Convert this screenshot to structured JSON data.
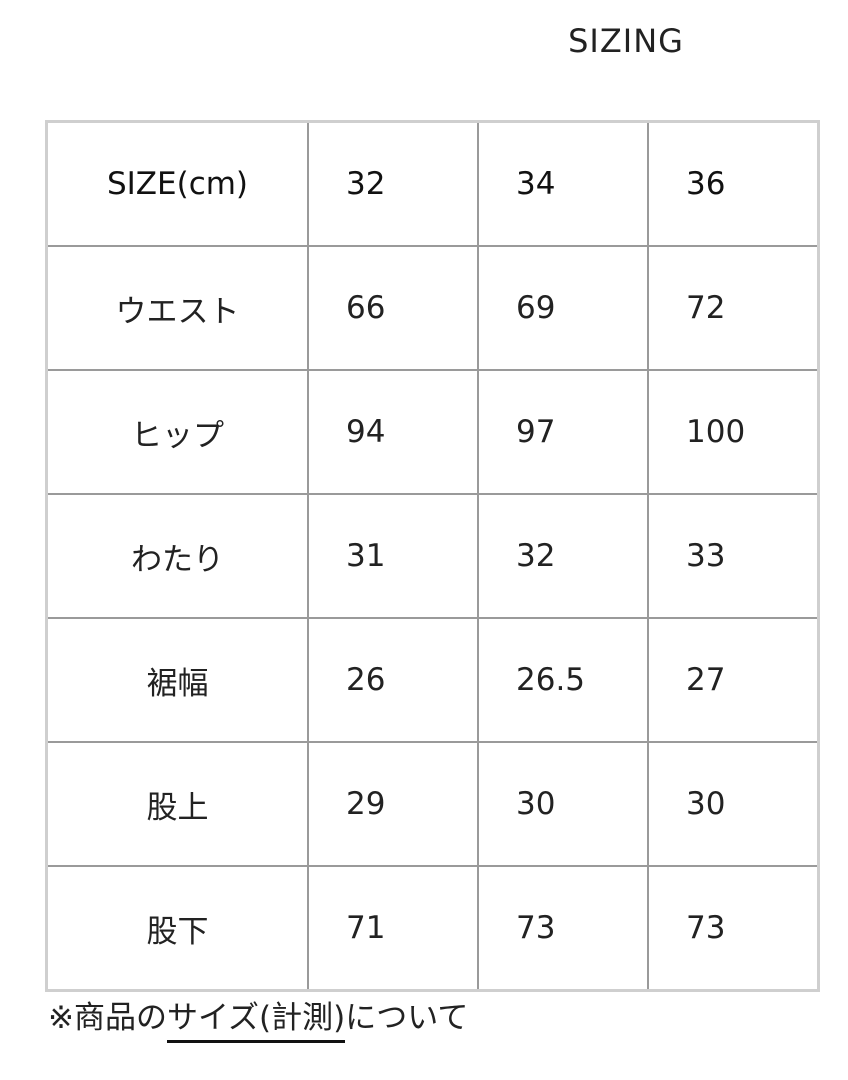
{
  "title": "SIZING",
  "table": {
    "header": [
      "SIZE(cm)",
      "32",
      "34",
      "36"
    ],
    "rows": [
      [
        "ウエスト",
        "66",
        "69",
        "72"
      ],
      [
        "ヒップ",
        "94",
        "97",
        "100"
      ],
      [
        "わたり",
        "31",
        "32",
        "33"
      ],
      [
        "裾幅",
        "26",
        "26.5",
        "27"
      ],
      [
        "股上",
        "29",
        "30",
        "30"
      ],
      [
        "股下",
        "71",
        "73",
        "73"
      ]
    ]
  },
  "note": {
    "prefix": "※商品の",
    "link": "サイズ(計測)",
    "suffix": "について"
  }
}
